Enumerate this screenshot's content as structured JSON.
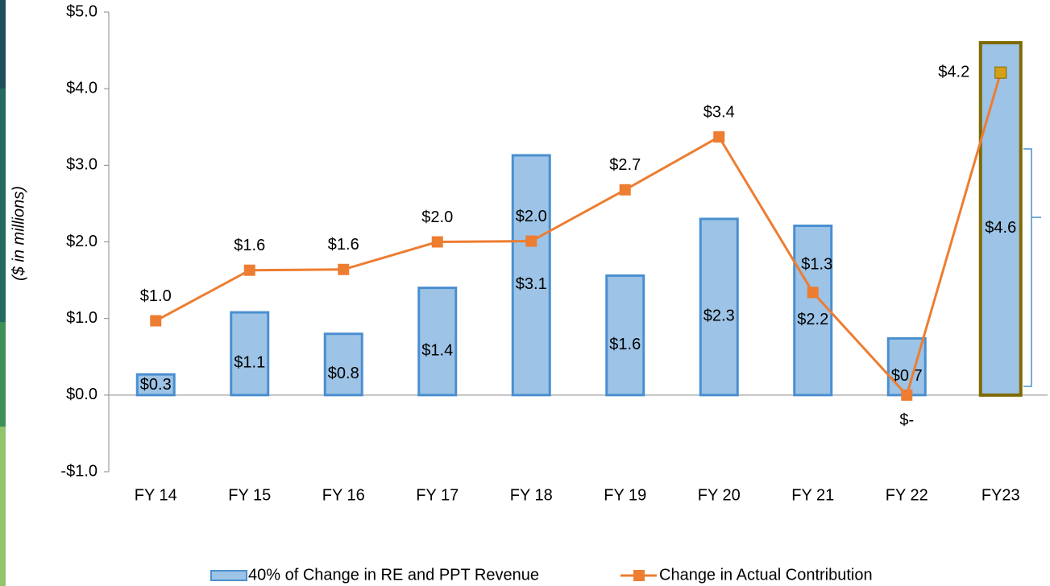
{
  "chart_data": {
    "type": "bar_line",
    "ylabel": "($ in millions)",
    "categories": [
      "FY 14",
      "FY 15",
      "FY 16",
      "FY 17",
      "FY 18",
      "FY 19",
      "FY 20",
      "FY 21",
      "FY 22",
      "FY23"
    ],
    "series": [
      {
        "name": "40% of Change in RE and PPT Revenue",
        "type": "bar",
        "color": "#9dc3e6",
        "edge_colors": [
          "#4a8fd0",
          "#4a8fd0",
          "#4a8fd0",
          "#4a8fd0",
          "#4a8fd0",
          "#4a8fd0",
          "#4a8fd0",
          "#4a8fd0",
          "#4a8fd0",
          "#7f6a00"
        ],
        "values": [
          0.27,
          1.08,
          0.8,
          1.4,
          3.13,
          1.56,
          2.3,
          2.21,
          0.74,
          4.6
        ],
        "value_labels": [
          "$0.3",
          "$1.1",
          "$0.8",
          "$1.4",
          "$3.1",
          "$1.6",
          "$2.3",
          "$2.2",
          "$0.7",
          "$4.6"
        ]
      },
      {
        "name": "Change in Actual Contribution",
        "type": "line",
        "color": "#ed7d31",
        "marker_colors": [
          "#ed7d31",
          "#ed7d31",
          "#ed7d31",
          "#ed7d31",
          "#ed7d31",
          "#ed7d31",
          "#ed7d31",
          "#ed7d31",
          "#ed7d31",
          "#d4a017"
        ],
        "values": [
          0.97,
          1.63,
          1.64,
          2.0,
          2.01,
          2.68,
          3.37,
          1.34,
          0.0,
          4.21
        ],
        "value_labels": [
          "$1.0",
          "$1.6",
          "$1.6",
          "$2.0",
          "$2.0",
          "$2.7",
          "$3.4",
          "$1.3",
          "$-",
          "$4.2"
        ]
      }
    ],
    "ylim": [
      -1,
      5
    ],
    "yticks": [
      {
        "value": -1,
        "label": "-$1.0"
      },
      {
        "value": 0,
        "label": "$0.0"
      },
      {
        "value": 1,
        "label": "$1.0"
      },
      {
        "value": 2,
        "label": "$2.0"
      },
      {
        "value": 3,
        "label": "$3.0"
      },
      {
        "value": 4,
        "label": "$4.0"
      },
      {
        "value": 5,
        "label": "$5.0"
      }
    ],
    "legend": "bottom"
  }
}
